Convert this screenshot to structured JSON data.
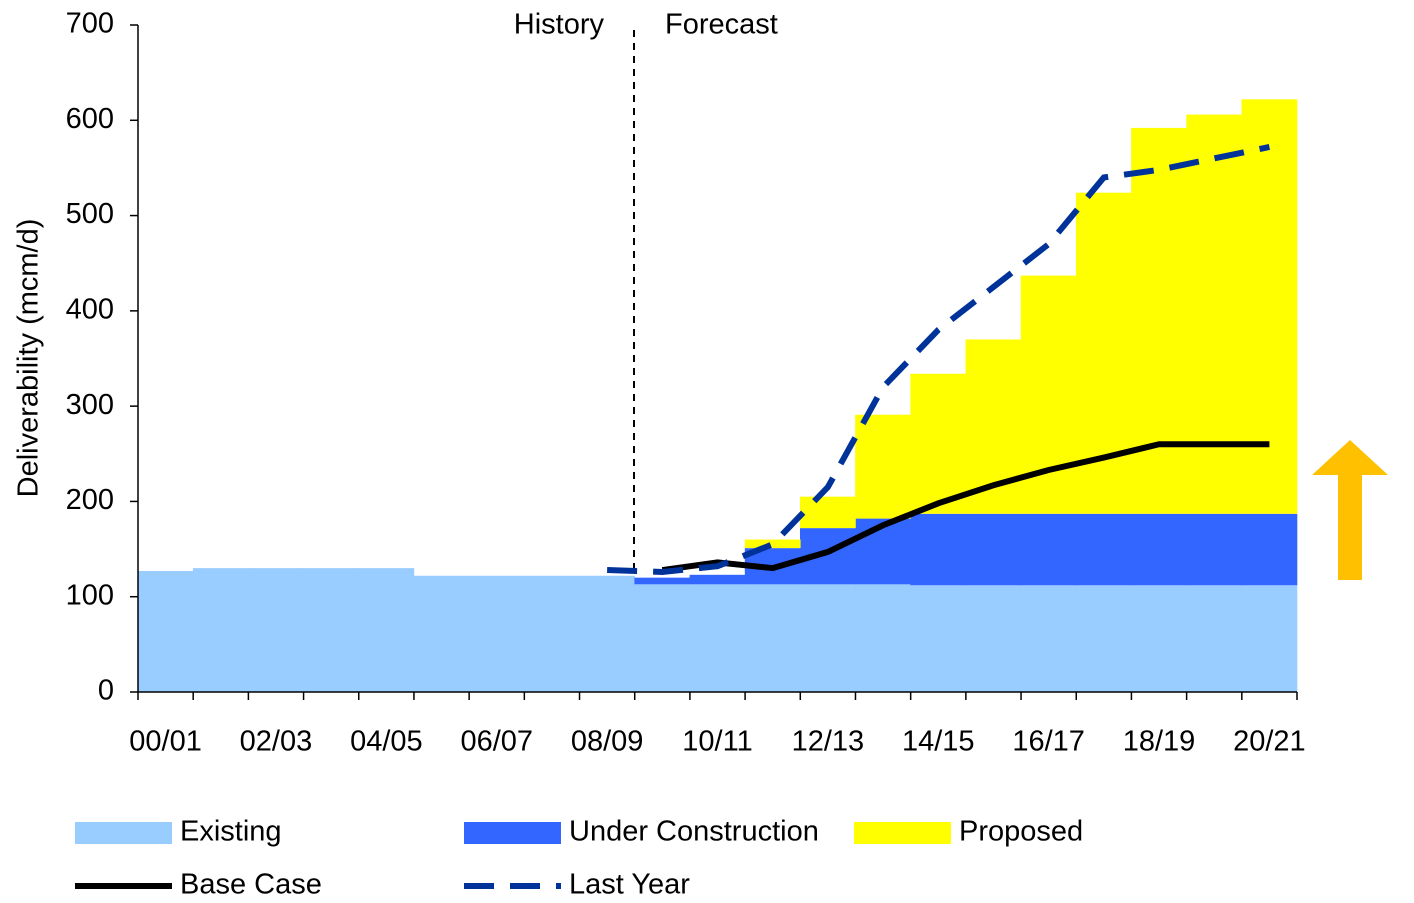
{
  "chart_data": {
    "type": "stacked_area_bar",
    "ylabel": "Deliverability (mcm/d)",
    "annotations": [
      "History",
      "Forecast"
    ],
    "categories": [
      "00/01",
      null,
      "02/03",
      null,
      "04/05",
      null,
      "06/07",
      null,
      "08/09",
      null,
      "10/11",
      null,
      "12/13",
      null,
      "14/15",
      null,
      "16/17",
      null,
      "18/19",
      null,
      "20/21"
    ],
    "series": [
      {
        "name": "Existing",
        "color": "#99ccff",
        "kind": "bar",
        "values": [
          127,
          130,
          130,
          130,
          130,
          122,
          122,
          122,
          122,
          113,
          113,
          113,
          113,
          113,
          112,
          112,
          112,
          112,
          112,
          112,
          112
        ]
      },
      {
        "name": "Under Construction",
        "color": "#3366ff",
        "kind": "bar",
        "values": [
          null,
          null,
          null,
          null,
          null,
          null,
          null,
          null,
          null,
          7,
          10,
          38,
          59,
          69,
          75,
          75,
          75,
          75,
          75,
          75,
          75
        ]
      },
      {
        "name": "Proposed",
        "color": "#ffff00",
        "kind": "bar",
        "values": [
          null,
          null,
          null,
          null,
          null,
          null,
          null,
          null,
          null,
          null,
          null,
          9,
          33,
          109,
          147,
          183,
          250,
          337,
          405,
          419,
          435
        ]
      },
      {
        "name": "Base Case",
        "color": "#000000",
        "kind": "line",
        "dash": false,
        "values": [
          null,
          null,
          null,
          null,
          null,
          null,
          null,
          null,
          null,
          128,
          136,
          130,
          147,
          175,
          198,
          217,
          233,
          246,
          260,
          260,
          260
        ]
      },
      {
        "name": "Last Year",
        "color": "#003399",
        "kind": "line",
        "dash": true,
        "values": [
          null,
          null,
          null,
          null,
          null,
          null,
          null,
          null,
          128,
          126,
          132,
          155,
          215,
          320,
          380,
          425,
          470,
          540,
          548,
          560,
          572
        ]
      }
    ],
    "ylim": [
      0,
      700
    ],
    "yticks": [
      0,
      100,
      200,
      300,
      400,
      500,
      600,
      700
    ]
  }
}
